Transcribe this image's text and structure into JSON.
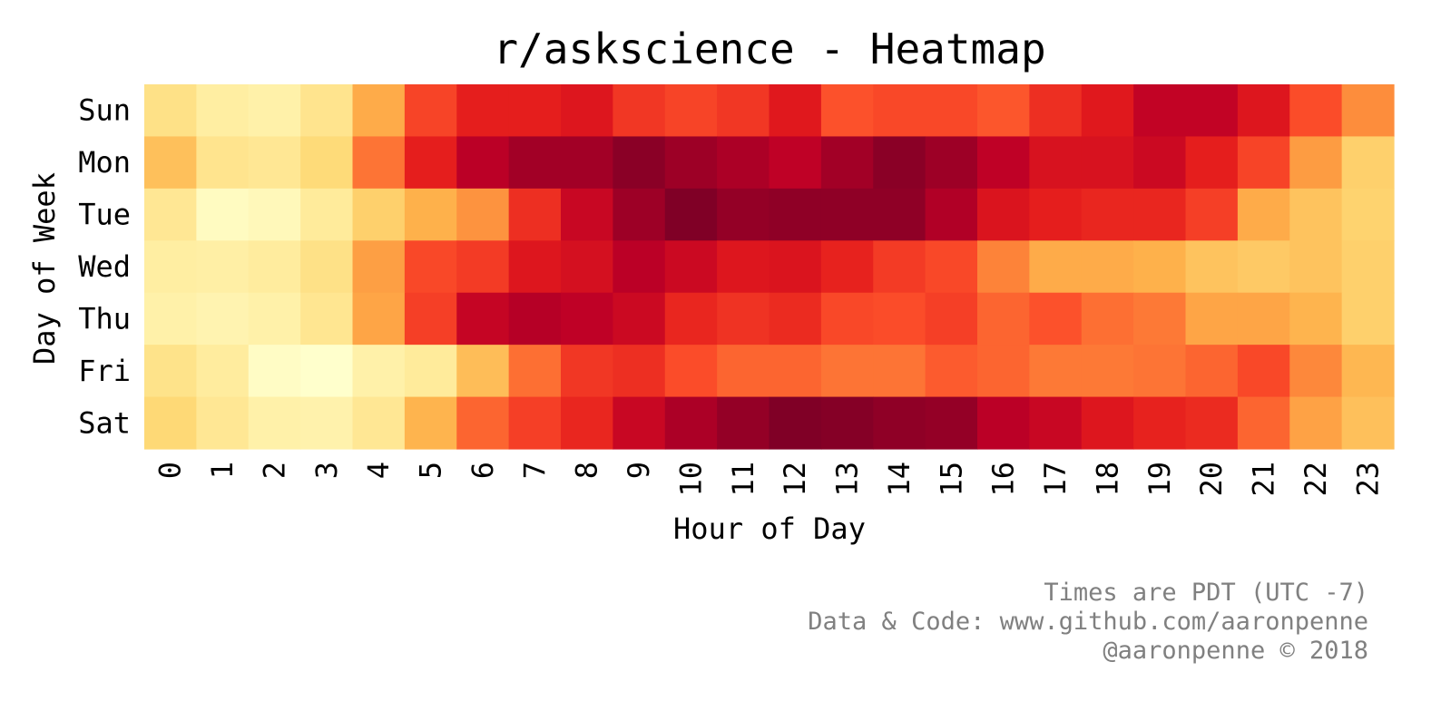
{
  "chart_data": {
    "type": "heatmap",
    "title": "r/askscience - Heatmap",
    "xlabel": "Hour of Day",
    "ylabel": "Day of Week",
    "x_categories": [
      "0",
      "1",
      "2",
      "3",
      "4",
      "5",
      "6",
      "7",
      "8",
      "9",
      "10",
      "11",
      "12",
      "13",
      "14",
      "15",
      "16",
      "17",
      "18",
      "19",
      "20",
      "21",
      "22",
      "23"
    ],
    "y_categories": [
      "Sun",
      "Mon",
      "Tue",
      "Wed",
      "Thu",
      "Fri",
      "Sat"
    ],
    "colormap": "YlOrRd",
    "value_range": [
      0,
      1
    ],
    "values": [
      [
        0.2,
        0.12,
        0.1,
        0.18,
        0.4,
        0.65,
        0.74,
        0.74,
        0.77,
        0.68,
        0.65,
        0.68,
        0.76,
        0.62,
        0.64,
        0.64,
        0.61,
        0.7,
        0.76,
        0.86,
        0.86,
        0.77,
        0.63,
        0.5
      ],
      [
        0.33,
        0.18,
        0.16,
        0.24,
        0.55,
        0.74,
        0.88,
        0.93,
        0.93,
        0.98,
        0.94,
        0.91,
        0.87,
        0.93,
        0.98,
        0.94,
        0.87,
        0.79,
        0.79,
        0.83,
        0.74,
        0.65,
        0.45,
        0.28
      ],
      [
        0.16,
        0.03,
        0.05,
        0.14,
        0.28,
        0.38,
        0.48,
        0.7,
        0.84,
        0.94,
        1.0,
        0.96,
        0.97,
        0.97,
        0.97,
        0.9,
        0.78,
        0.74,
        0.72,
        0.72,
        0.66,
        0.4,
        0.32,
        0.27
      ],
      [
        0.12,
        0.11,
        0.13,
        0.2,
        0.44,
        0.64,
        0.67,
        0.77,
        0.8,
        0.88,
        0.83,
        0.77,
        0.78,
        0.73,
        0.67,
        0.64,
        0.52,
        0.4,
        0.4,
        0.38,
        0.32,
        0.3,
        0.32,
        0.28
      ],
      [
        0.1,
        0.08,
        0.1,
        0.17,
        0.42,
        0.66,
        0.85,
        0.89,
        0.87,
        0.83,
        0.72,
        0.69,
        0.71,
        0.64,
        0.63,
        0.66,
        0.58,
        0.62,
        0.56,
        0.54,
        0.42,
        0.42,
        0.37,
        0.28
      ],
      [
        0.19,
        0.13,
        0.02,
        0.0,
        0.1,
        0.14,
        0.34,
        0.56,
        0.68,
        0.7,
        0.63,
        0.58,
        0.58,
        0.55,
        0.55,
        0.6,
        0.58,
        0.54,
        0.54,
        0.55,
        0.58,
        0.64,
        0.51,
        0.36
      ],
      [
        0.25,
        0.16,
        0.1,
        0.09,
        0.16,
        0.37,
        0.58,
        0.66,
        0.72,
        0.84,
        0.91,
        0.96,
        1.0,
        0.99,
        0.97,
        0.96,
        0.88,
        0.84,
        0.77,
        0.73,
        0.71,
        0.58,
        0.43,
        0.33
      ]
    ]
  },
  "footer": {
    "line1": "Times are PDT (UTC -7)",
    "line2": "Data & Code: www.github.com/aaronpenne",
    "line3": "@aaronpenne © 2018"
  }
}
